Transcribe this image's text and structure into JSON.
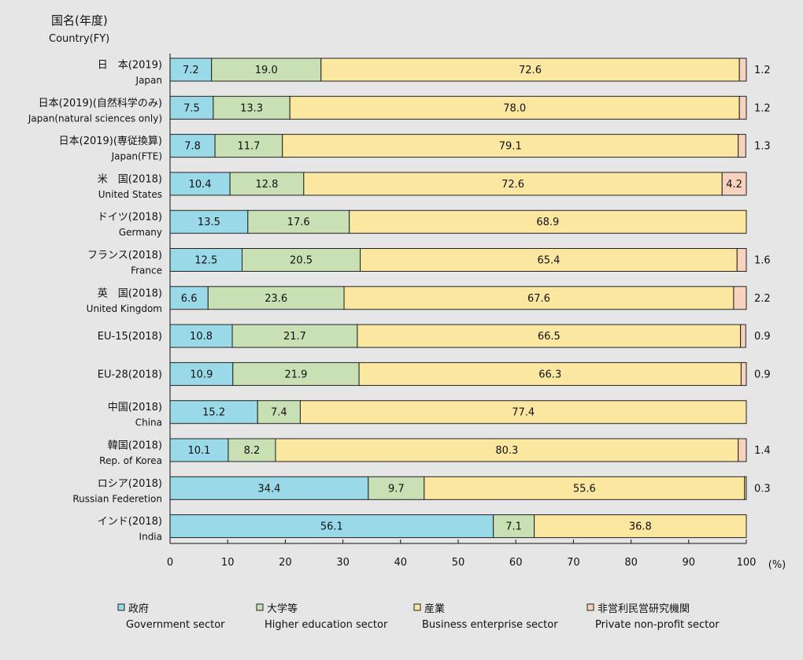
{
  "header": {
    "label_jp": "国名(年度)",
    "label_en": "Country(FY)"
  },
  "chart_data": {
    "type": "bar",
    "orientation": "horizontal",
    "stacked": true,
    "percent_scale": true,
    "categories": [
      {
        "jp": "日　本(2019)",
        "en": "Japan"
      },
      {
        "jp": "日本(2019)(自然科学のみ)",
        "en": "Japan(natural sciences only)"
      },
      {
        "jp": "日本(2019)(専従換算)",
        "en": "Japan(FTE)"
      },
      {
        "jp": "米　国(2018)",
        "en": "United States"
      },
      {
        "jp": "ドイツ(2018)",
        "en": "Germany"
      },
      {
        "jp": "フランス(2018)",
        "en": "France"
      },
      {
        "jp": "英　国(2018)",
        "en": "United Kingdom"
      },
      {
        "jp": "EU-15(2018)",
        "en": ""
      },
      {
        "jp": "EU-28(2018)",
        "en": ""
      },
      {
        "jp": "中国(2018)",
        "en": "China"
      },
      {
        "jp": "韓国(2018)",
        "en": "Rep. of Korea"
      },
      {
        "jp": "ロシア(2018)",
        "en": "Russian Federetion"
      },
      {
        "jp": "インド(2018)",
        "en": "India"
      }
    ],
    "series": [
      {
        "name_jp": "政府",
        "name_en": "Government sector",
        "color": "#9ad9e8",
        "values": [
          7.2,
          7.5,
          7.8,
          10.4,
          13.5,
          12.5,
          6.6,
          10.8,
          10.9,
          15.2,
          10.1,
          34.4,
          56.1
        ],
        "labels": [
          "7.2",
          "7.5",
          "7.8",
          "10.4",
          "13.5",
          "12.5",
          "6.6",
          "10.8",
          "10.9",
          "15.2",
          "10.1",
          "34.4",
          "56.1"
        ]
      },
      {
        "name_jp": "大学等",
        "name_en": "Higher education sector",
        "color": "#c8e0b4",
        "values": [
          19.0,
          13.3,
          11.7,
          12.8,
          17.6,
          20.5,
          23.6,
          21.7,
          21.9,
          7.4,
          8.2,
          9.7,
          7.1
        ],
        "labels": [
          "19.0",
          "13.3",
          "11.7",
          "12.8",
          "17.6",
          "20.5",
          "23.6",
          "21.7",
          "21.9",
          "7.4",
          "8.2",
          "9.7",
          "7.1"
        ]
      },
      {
        "name_jp": "産業",
        "name_en": "Business enterprise sector",
        "color": "#fbe79f",
        "values": [
          72.6,
          78.0,
          79.1,
          72.6,
          68.9,
          65.4,
          67.6,
          66.5,
          66.3,
          77.4,
          80.3,
          55.6,
          36.8
        ],
        "labels": [
          "72.6",
          "78.0",
          "79.1",
          "72.6",
          "68.9",
          "65.4",
          "67.6",
          "66.5",
          "66.3",
          "77.4",
          "80.3",
          "55.6",
          "36.8"
        ]
      },
      {
        "name_jp": "非営利民営研究機関",
        "name_en": "Private non-profit sector",
        "color": "#f7d3bf",
        "values": [
          1.2,
          1.2,
          1.3,
          4.2,
          0,
          1.6,
          2.2,
          0.9,
          0.9,
          0,
          1.4,
          0.3,
          0
        ],
        "labels": [
          "1.2",
          "1.2",
          "1.3",
          "4.2",
          "",
          "1.6",
          "2.2",
          "0.9",
          "0.9",
          "",
          "1.4",
          "0.3",
          ""
        ],
        "label_position": [
          "outside",
          "outside",
          "outside",
          "inside",
          "none",
          "outside",
          "outside",
          "outside",
          "outside",
          "none",
          "outside",
          "outside",
          "none"
        ]
      }
    ],
    "xlim": [
      0,
      100
    ],
    "xticks": [
      0,
      10,
      20,
      30,
      40,
      50,
      60,
      70,
      80,
      90,
      100
    ],
    "xunit": "(%)",
    "legend_placement": "bottom"
  }
}
